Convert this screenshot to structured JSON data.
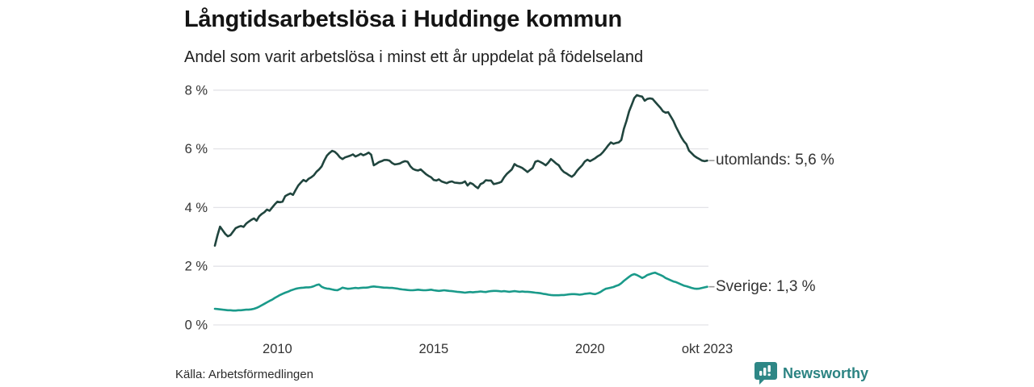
{
  "header": {
    "title": "Långtidsarbetslösa i Huddinge kommun",
    "subtitle": "Andel som varit arbetslösa i minst ett år uppdelat på födelseland"
  },
  "footer": {
    "source": "Källa: Arbetsförmedlingen",
    "brand_name": "Newsworthy"
  },
  "colors": {
    "utomlands_line": "#20453e",
    "sverige_line": "#1a9a8a",
    "grid": "#e3e3e7",
    "axis_text": "#333333",
    "end_tick": "#9a9a9a",
    "brand_teal": "#2e8786"
  },
  "chart_data": {
    "type": "line",
    "title": "Långtidsarbetslösa i Huddinge kommun",
    "subtitle": "Andel som varit arbetslösa i minst ett år uppdelat på födelseland",
    "unit": "%",
    "x_start": "jan 2008",
    "x_end": "okt 2023",
    "x_frequency": "monthly",
    "ylim": [
      0,
      8
    ],
    "y_ticks": [
      0,
      2,
      4,
      6,
      8
    ],
    "y_tick_labels": [
      "0 %",
      "2 %",
      "4 %",
      "6 %",
      "8 %"
    ],
    "x_tick_months": [
      24,
      84,
      144,
      189
    ],
    "x_tick_labels": [
      "2010",
      "2015",
      "2020",
      "okt 2023"
    ],
    "grid": "horizontal-only",
    "legend_position": "end-of-line-labels",
    "series": [
      {
        "name": "utomlands",
        "end_label": "utomlands: 5,6 %",
        "last_value": 5.6,
        "color": "#20453e",
        "values": [
          2.7,
          3.05,
          3.35,
          3.22,
          3.1,
          3.02,
          3.06,
          3.18,
          3.3,
          3.34,
          3.37,
          3.34,
          3.45,
          3.52,
          3.58,
          3.63,
          3.55,
          3.7,
          3.78,
          3.84,
          3.93,
          3.89,
          4.0,
          4.11,
          4.2,
          4.18,
          4.2,
          4.39,
          4.44,
          4.48,
          4.43,
          4.6,
          4.75,
          4.85,
          4.94,
          4.89,
          4.98,
          5.03,
          5.1,
          5.22,
          5.3,
          5.4,
          5.6,
          5.77,
          5.86,
          5.93,
          5.9,
          5.82,
          5.71,
          5.65,
          5.71,
          5.74,
          5.77,
          5.81,
          5.74,
          5.78,
          5.83,
          5.78,
          5.82,
          5.87,
          5.8,
          5.44,
          5.49,
          5.55,
          5.58,
          5.62,
          5.62,
          5.6,
          5.52,
          5.47,
          5.48,
          5.5,
          5.55,
          5.58,
          5.56,
          5.41,
          5.32,
          5.28,
          5.26,
          5.3,
          5.22,
          5.14,
          5.08,
          5.03,
          4.94,
          4.92,
          4.96,
          4.89,
          4.86,
          4.83,
          4.87,
          4.89,
          4.85,
          4.84,
          4.83,
          4.84,
          4.89,
          4.75,
          4.84,
          4.8,
          4.72,
          4.66,
          4.8,
          4.84,
          4.93,
          4.92,
          4.92,
          4.8,
          4.82,
          4.84,
          4.88,
          5.03,
          5.14,
          5.22,
          5.3,
          5.48,
          5.42,
          5.39,
          5.35,
          5.28,
          5.21,
          5.28,
          5.35,
          5.56,
          5.59,
          5.55,
          5.5,
          5.44,
          5.53,
          5.65,
          5.58,
          5.5,
          5.44,
          5.3,
          5.21,
          5.16,
          5.1,
          5.05,
          5.12,
          5.25,
          5.35,
          5.44,
          5.57,
          5.63,
          5.58,
          5.63,
          5.68,
          5.75,
          5.8,
          5.89,
          6.0,
          6.12,
          6.22,
          6.17,
          6.2,
          6.22,
          6.3,
          6.68,
          6.95,
          7.28,
          7.5,
          7.73,
          7.83,
          7.8,
          7.78,
          7.64,
          7.7,
          7.72,
          7.7,
          7.6,
          7.5,
          7.4,
          7.28,
          7.23,
          7.25,
          7.1,
          6.95,
          6.75,
          6.58,
          6.4,
          6.26,
          6.16,
          5.94,
          5.85,
          5.76,
          5.7,
          5.65,
          5.6,
          5.58,
          5.6
        ]
      },
      {
        "name": "Sverige",
        "end_label": "Sverige: 1,3 %",
        "last_value": 1.3,
        "color": "#1a9a8a",
        "values": [
          0.55,
          0.54,
          0.53,
          0.52,
          0.51,
          0.5,
          0.5,
          0.49,
          0.49,
          0.5,
          0.5,
          0.51,
          0.52,
          0.52,
          0.53,
          0.55,
          0.58,
          0.62,
          0.67,
          0.72,
          0.77,
          0.82,
          0.86,
          0.92,
          0.97,
          1.02,
          1.06,
          1.1,
          1.13,
          1.17,
          1.2,
          1.23,
          1.25,
          1.26,
          1.27,
          1.28,
          1.28,
          1.29,
          1.32,
          1.36,
          1.38,
          1.3,
          1.26,
          1.24,
          1.23,
          1.21,
          1.19,
          1.18,
          1.22,
          1.27,
          1.25,
          1.23,
          1.24,
          1.25,
          1.26,
          1.25,
          1.26,
          1.27,
          1.27,
          1.28,
          1.3,
          1.31,
          1.3,
          1.29,
          1.28,
          1.27,
          1.27,
          1.26,
          1.26,
          1.25,
          1.24,
          1.22,
          1.21,
          1.2,
          1.19,
          1.18,
          1.18,
          1.19,
          1.2,
          1.19,
          1.18,
          1.18,
          1.19,
          1.2,
          1.18,
          1.17,
          1.16,
          1.17,
          1.18,
          1.17,
          1.16,
          1.15,
          1.14,
          1.13,
          1.12,
          1.11,
          1.1,
          1.11,
          1.12,
          1.11,
          1.12,
          1.13,
          1.14,
          1.13,
          1.12,
          1.14,
          1.15,
          1.16,
          1.16,
          1.15,
          1.14,
          1.15,
          1.14,
          1.13,
          1.14,
          1.15,
          1.14,
          1.13,
          1.14,
          1.13,
          1.13,
          1.12,
          1.11,
          1.1,
          1.09,
          1.08,
          1.06,
          1.05,
          1.03,
          1.02,
          1.01,
          1.01,
          1.01,
          1.02,
          1.02,
          1.03,
          1.04,
          1.05,
          1.05,
          1.04,
          1.03,
          1.04,
          1.06,
          1.07,
          1.08,
          1.06,
          1.05,
          1.08,
          1.12,
          1.18,
          1.23,
          1.25,
          1.27,
          1.29,
          1.33,
          1.36,
          1.42,
          1.5,
          1.57,
          1.64,
          1.7,
          1.73,
          1.7,
          1.65,
          1.6,
          1.64,
          1.7,
          1.73,
          1.76,
          1.78,
          1.74,
          1.7,
          1.66,
          1.6,
          1.56,
          1.52,
          1.48,
          1.46,
          1.42,
          1.38,
          1.34,
          1.32,
          1.29,
          1.26,
          1.24,
          1.23,
          1.24,
          1.26,
          1.28,
          1.3
        ]
      }
    ]
  }
}
